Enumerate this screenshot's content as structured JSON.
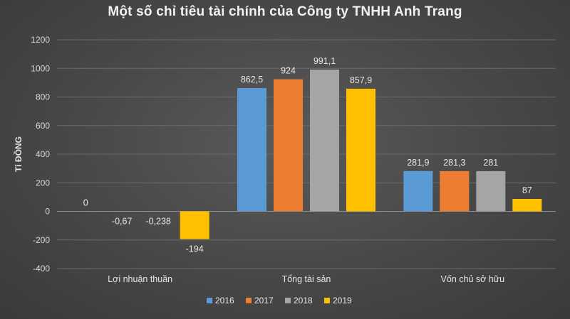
{
  "chart_data": {
    "type": "bar",
    "title": "Một số chỉ tiêu tài chính của Công ty TNHH Anh Trang",
    "ylabel": "Tỉ ĐỒNG",
    "xlabel": "",
    "ylim": [
      -400,
      1200
    ],
    "yticks": [
      -400,
      -200,
      0,
      200,
      400,
      600,
      800,
      1000,
      1200
    ],
    "ytick_labels": [
      "-400",
      "-200",
      "0",
      "200",
      "400",
      "600",
      "800",
      "1000",
      "1200"
    ],
    "categories": [
      "Lợi nhuận thuần",
      "Tổng tài sản",
      "Vốn chủ sở hữu"
    ],
    "series": [
      {
        "name": "2016",
        "color": "#5b9bd5",
        "values": [
          0,
          862.5,
          281.9
        ],
        "labels": [
          "0",
          "862,5",
          "281,9"
        ]
      },
      {
        "name": "2017",
        "color": "#ed7d31",
        "values": [
          -0.67,
          924,
          281.3
        ],
        "labels": [
          "-0,67",
          "924",
          "281,3"
        ]
      },
      {
        "name": "2018",
        "color": "#a5a5a5",
        "values": [
          -0.238,
          991.1,
          281
        ],
        "labels": [
          "-0,238",
          "991,1",
          "281"
        ]
      },
      {
        "name": "2019",
        "color": "#ffc000",
        "values": [
          -194,
          857.9,
          87
        ],
        "labels": [
          "-194",
          "857,9",
          "87"
        ]
      }
    ],
    "grid": true,
    "legend_position": "bottom"
  }
}
